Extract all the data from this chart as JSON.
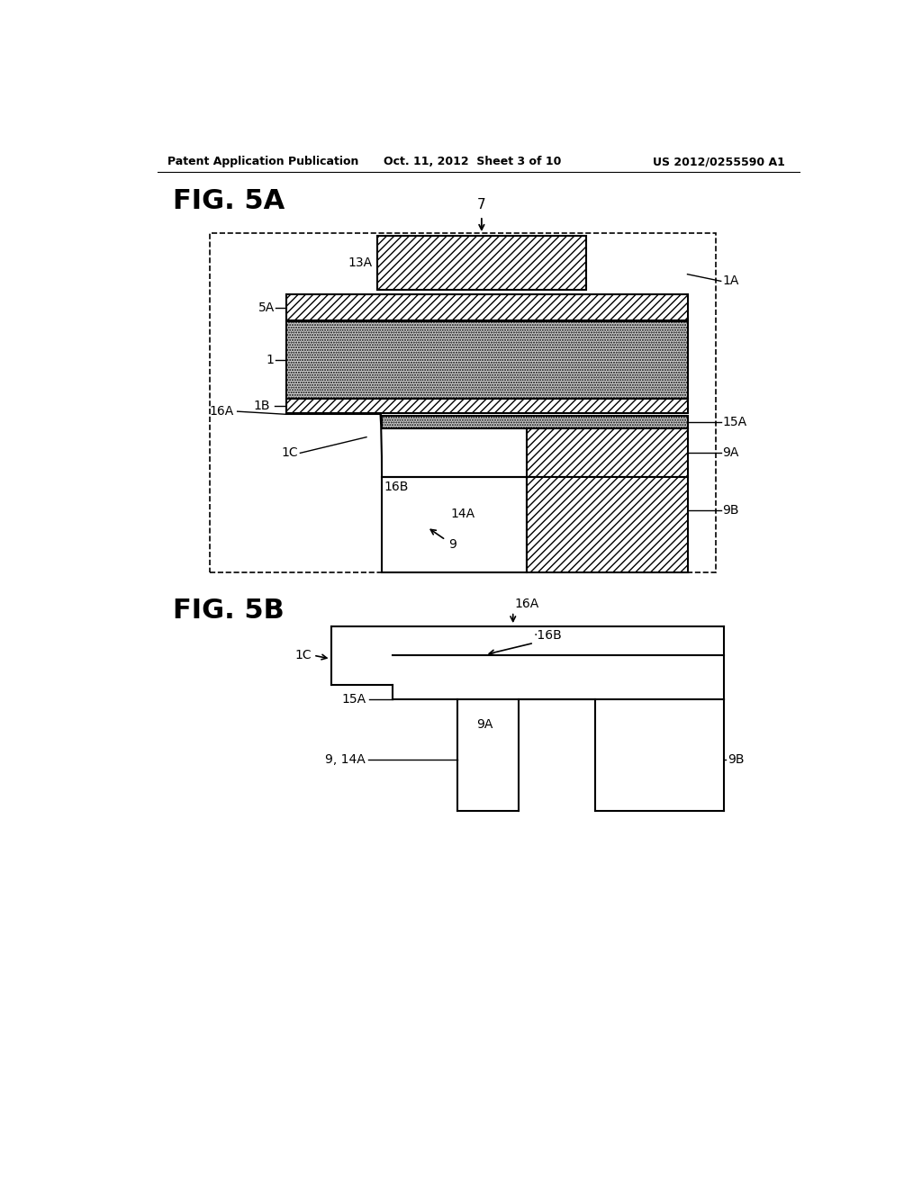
{
  "header_left": "Patent Application Publication",
  "header_center": "Oct. 11, 2012  Sheet 3 of 10",
  "header_right": "US 2012/0255590 A1",
  "fig5a_title": "FIG. 5A",
  "fig5b_title": "FIG. 5B",
  "background": "#ffffff",
  "line_color": "#000000"
}
